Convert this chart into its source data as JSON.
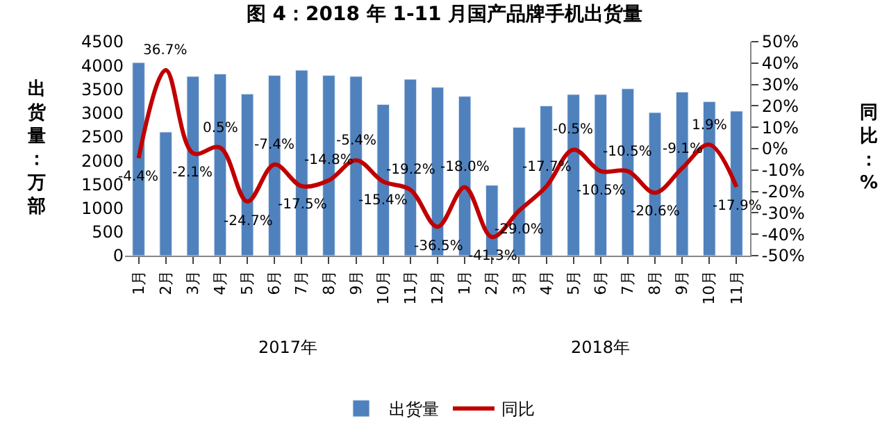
{
  "chart_data": {
    "type": "bar",
    "title": "图 4：2018 年 1-11 月国产品牌手机出货量",
    "categories": [
      "1月",
      "2月",
      "3月",
      "4月",
      "5月",
      "6月",
      "7月",
      "8月",
      "9月",
      "10月",
      "11月",
      "12月",
      "1月",
      "2月",
      "3月",
      "4月",
      "5月",
      "6月",
      "7月",
      "8月",
      "9月",
      "10月",
      "11月"
    ],
    "series": [
      {
        "name": "出货量",
        "color": "#4f81bd",
        "values": [
          4060,
          2600,
          3770,
          3820,
          3400,
          3790,
          3900,
          3790,
          3770,
          3180,
          3710,
          3540,
          3350,
          1480,
          2700,
          3150,
          3390,
          3390,
          3510,
          3010,
          3440,
          3240,
          3040
        ]
      },
      {
        "name": "同比",
        "type": "line",
        "axis": "y2",
        "color": "#c00000",
        "marker": "none",
        "values": [
          -4.4,
          36.7,
          -2.1,
          0.5,
          -24.7,
          -7.4,
          -17.5,
          -14.8,
          -5.4,
          -15.4,
          -19.2,
          -36.5,
          -18.0,
          -41.3,
          -29.0,
          -17.7,
          -0.5,
          -10.5,
          -10.5,
          -20.6,
          -9.1,
          1.9,
          -17.9
        ],
        "value_labels": [
          "-4.4%",
          "36.7%",
          "-2.1%",
          "0.5%",
          "-24.7%",
          "-7.4%",
          "-17.5%",
          "-14.8%",
          "-5.4%",
          "-15.4%",
          "-19.2%",
          "-36.5%",
          "-18.0%",
          "-41.3%",
          "-29.0%",
          "-17.7%",
          "-0.5%",
          "-10.5%",
          "-10.5%",
          "-20.6%",
          "-9.1%",
          "1.9%",
          "-17.9%"
        ]
      }
    ],
    "ylabel": "出货量：万部",
    "y2label": "同比：%",
    "ylim": [
      0,
      4500
    ],
    "yticks": [
      0,
      500,
      1000,
      1500,
      2000,
      2500,
      3000,
      3500,
      4000,
      4500
    ],
    "y2lim": [
      -50,
      50
    ],
    "y2ticks": [
      {
        "value": -50,
        "label": "-50%"
      },
      {
        "value": -40,
        "label": "-40%"
      },
      {
        "value": -30,
        "label": "-30%"
      },
      {
        "value": -20,
        "label": "-20%"
      },
      {
        "value": -10,
        "label": "-10%"
      },
      {
        "value": 0,
        "label": "0%"
      },
      {
        "value": 10,
        "label": "10%"
      },
      {
        "value": 20,
        "label": "20%"
      },
      {
        "value": 30,
        "label": "30%"
      },
      {
        "value": 40,
        "label": "40%"
      },
      {
        "value": 50,
        "label": "50%"
      }
    ],
    "annotations": [
      "2017年",
      "2018年"
    ],
    "legend": "bottom"
  }
}
